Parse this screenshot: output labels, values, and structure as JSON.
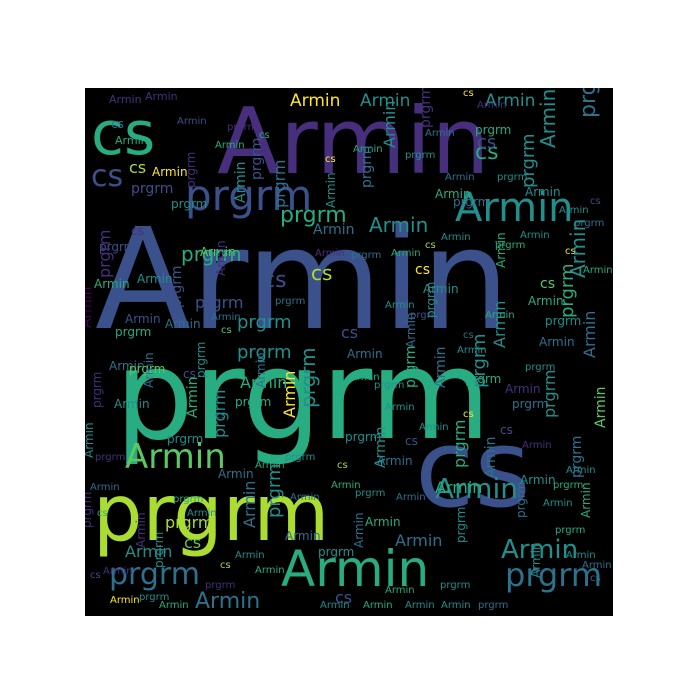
{
  "figure": {
    "background_color": "#ffffff",
    "cloud_background_color": "#000000"
  },
  "word_cloud": {
    "words": [
      "Armin",
      "prgrm",
      "cs"
    ],
    "palette": {
      "dark_purple": "#440154",
      "purple": "#472f7d",
      "indigo": "#3b518b",
      "blue": "#2c718e",
      "teal": "#21908d",
      "green": "#27ad81",
      "light_green": "#5cc863",
      "lime": "#aadc32",
      "yellow": "#fde725"
    }
  }
}
